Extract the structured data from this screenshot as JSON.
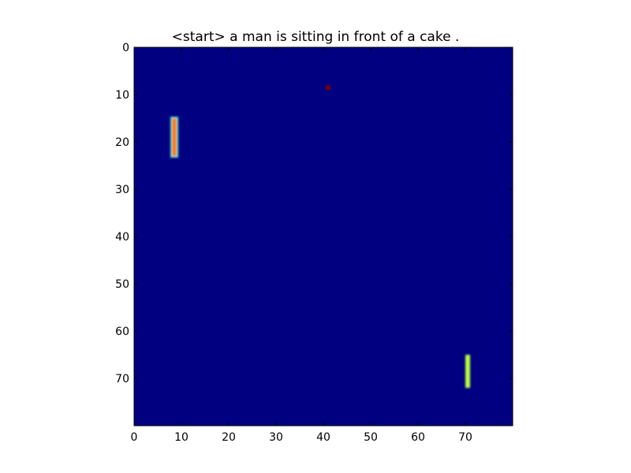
{
  "chart_data": {
    "type": "heatmap",
    "title": "<start> a man is sitting in front of a cake .",
    "xlabel": "",
    "ylabel": "",
    "xlim": [
      0,
      80
    ],
    "ylim": [
      80,
      0
    ],
    "x_ticks": [
      "0",
      "10",
      "20",
      "30",
      "40",
      "50",
      "60",
      "70"
    ],
    "y_ticks": [
      "0",
      "10",
      "20",
      "30",
      "40",
      "50",
      "60",
      "70"
    ],
    "colormap": "jet",
    "background_color": "#000080",
    "grid": false,
    "legend": "none",
    "regions": [
      {
        "x": [
          8,
          9
        ],
        "y": [
          15,
          23
        ],
        "value": 0.78,
        "edge_value": 0.35,
        "color": "#ff7a00",
        "edge_color": "#33e6d0"
      },
      {
        "x": [
          40.5,
          41.5
        ],
        "y": [
          8,
          9
        ],
        "value": 1.0,
        "color": "#800000"
      },
      {
        "x": [
          70,
          71
        ],
        "y": [
          65,
          72
        ],
        "value": 0.62,
        "color": "#b8ff40"
      }
    ]
  }
}
